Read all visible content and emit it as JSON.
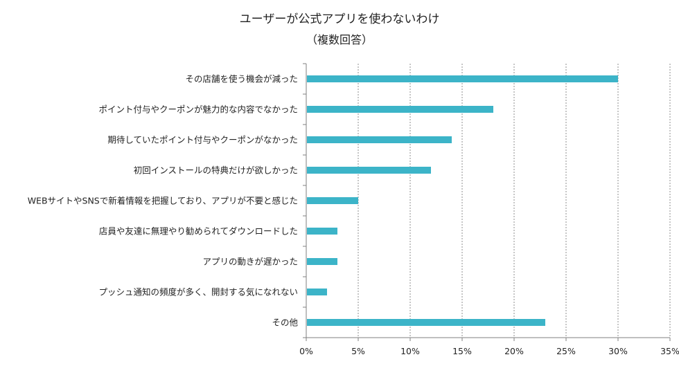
{
  "chart_data": {
    "type": "bar",
    "orientation": "horizontal",
    "title": "ユーザーが公式アプリを使わないわけ",
    "subtitle": "（複数回答）",
    "categories": [
      "その店舗を使う機会が減った",
      "ポイント付与やクーポンが魅力的な内容でなかった",
      "期待していたポイント付与やクーポンがなかった",
      "初回インストールの特典だけが欲しかった",
      "WEBサイトやSNSで新着情報を把握しており、アプリが不要と感じた",
      "店員や友達に無理やり勧められてダウンロードした",
      "アプリの動きが遅かった",
      "プッシュ通知の頻度が多く、開封する気になれない",
      "その他"
    ],
    "values": [
      30,
      18,
      14,
      12,
      5,
      3,
      3,
      2,
      23
    ],
    "unit": "%",
    "xlim": [
      0,
      35
    ],
    "xticks": [
      "0%",
      "5%",
      "10%",
      "15%",
      "20%",
      "25%",
      "30%",
      "35%"
    ],
    "grid": "vertical dotted",
    "legend": "none",
    "bar_color": "#3cb4c8",
    "axis_color": "#7f7f7f",
    "grid_color": "#8c8c8c"
  }
}
